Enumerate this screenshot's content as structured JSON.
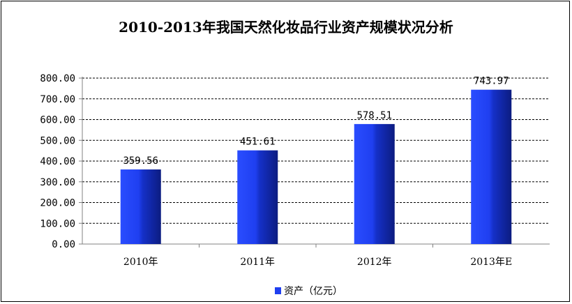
{
  "chart_data": {
    "type": "bar",
    "title": "2010-2013年我国天然化妆品行业资产规模状况分析",
    "categories": [
      "2010年",
      "2011年",
      "2012年",
      "2013年E"
    ],
    "series": [
      {
        "name": "资产（亿元）",
        "values": [
          359.56,
          451.61,
          578.51,
          743.97
        ]
      }
    ],
    "data_labels": [
      "359.56",
      "451.61",
      "578.51",
      "743.97"
    ],
    "yticks": [
      "0.00",
      "100.00",
      "200.00",
      "300.00",
      "400.00",
      "500.00",
      "600.00",
      "700.00",
      "800.00"
    ],
    "ylim": [
      0,
      800
    ],
    "grid": true,
    "legend": "bottom",
    "colors": {
      "bar": "#1f3ff0",
      "bar_dark": "#0d1f8a",
      "grid": "#000000",
      "axis": "#808080"
    }
  }
}
